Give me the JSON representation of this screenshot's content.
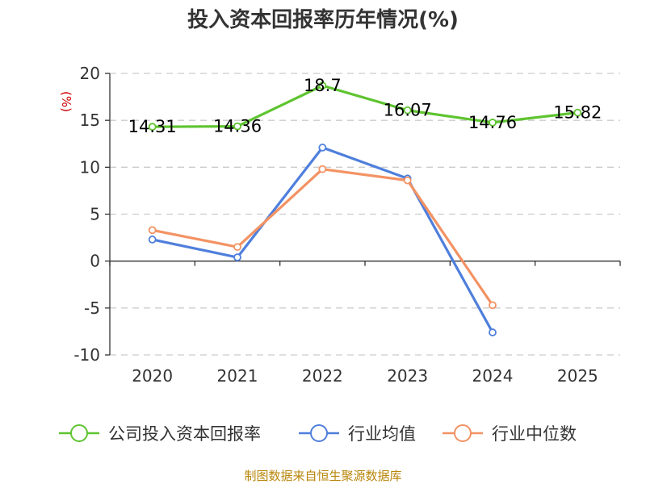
{
  "chart_data": {
    "type": "line",
    "title": "投入资本回报率历年情况(%)",
    "ylabel": "(%)",
    "xlabel": "",
    "categories": [
      "2020",
      "2021",
      "2022",
      "2023",
      "2024",
      "2025"
    ],
    "ylim": [
      -10,
      20
    ],
    "yticks": [
      20,
      15,
      10,
      5,
      0,
      -5,
      -10
    ],
    "grid": true,
    "legend_position": "bottom",
    "series": [
      {
        "name": "公司投入资本回报率",
        "color": "#5ec430",
        "values": [
          14.31,
          14.36,
          18.7,
          16.07,
          14.76,
          15.82
        ],
        "labels": [
          "14.31",
          "14.36",
          "18.7",
          "16.07",
          "14.76",
          "15.82"
        ]
      },
      {
        "name": "行业均值",
        "color": "#4f7fdc",
        "values": [
          2.3,
          0.4,
          12.1,
          8.8,
          -7.6,
          null
        ]
      },
      {
        "name": "行业中位数",
        "color": "#f39263",
        "values": [
          3.3,
          1.5,
          9.8,
          8.6,
          -4.7,
          null
        ]
      }
    ]
  },
  "source": "制图数据来自恒生聚源数据库"
}
